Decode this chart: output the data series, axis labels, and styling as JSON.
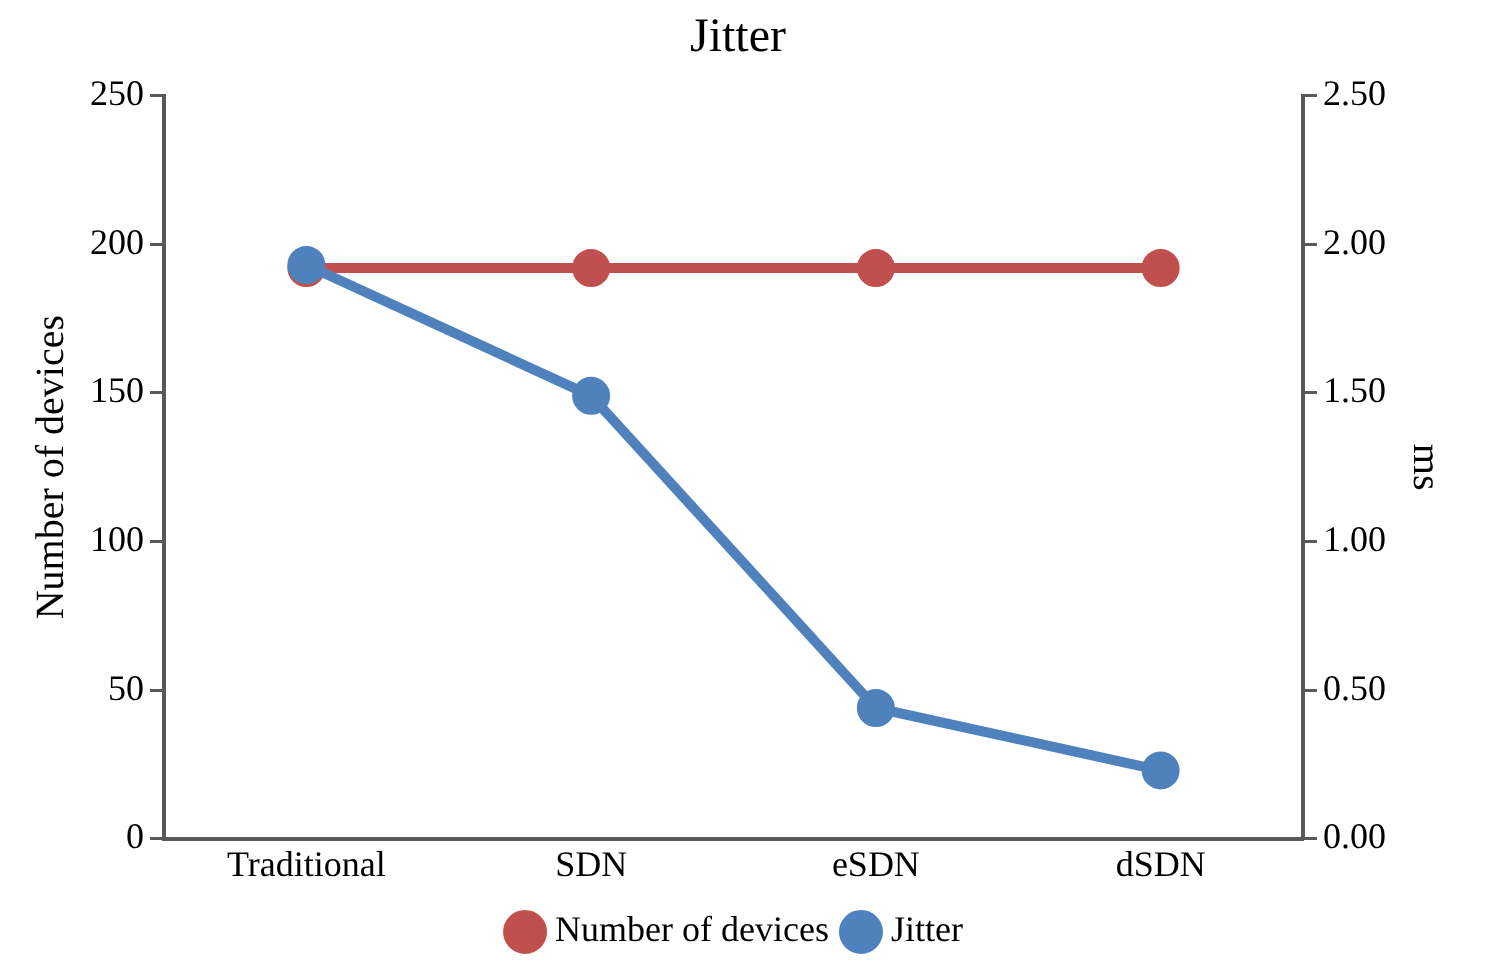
{
  "chart_data": {
    "type": "line",
    "title": "Jitter",
    "ylabel": "Number of devices",
    "y2label": "ms",
    "categories": [
      "Traditional",
      "SDN",
      "eSDN",
      "dSDN"
    ],
    "series": [
      {
        "name": "Number of devices",
        "color": "#c0504d",
        "values": [
          192,
          192,
          192,
          192
        ]
      },
      {
        "name": "Jitter",
        "color": "#4f81bd",
        "values": [
          1.93,
          1.49,
          0.44,
          0.23
        ],
        "axis": "y2"
      }
    ],
    "ylim": [
      0,
      250
    ],
    "yticks": [
      0,
      50,
      100,
      150,
      200,
      250
    ],
    "y2lim": [
      0,
      2.5
    ],
    "y2ticks": [
      {
        "value": 0,
        "label": "0.00"
      },
      {
        "value": 0.5,
        "label": "0.50"
      },
      {
        "value": 1,
        "label": "1.00"
      },
      {
        "value": 1.5,
        "label": "1.50"
      },
      {
        "value": 2,
        "label": "2.00"
      },
      {
        "value": 2.5,
        "label": "2.50"
      }
    ],
    "grid": false,
    "legend": "bottom",
    "marker": "circle",
    "line_style": "solid"
  }
}
